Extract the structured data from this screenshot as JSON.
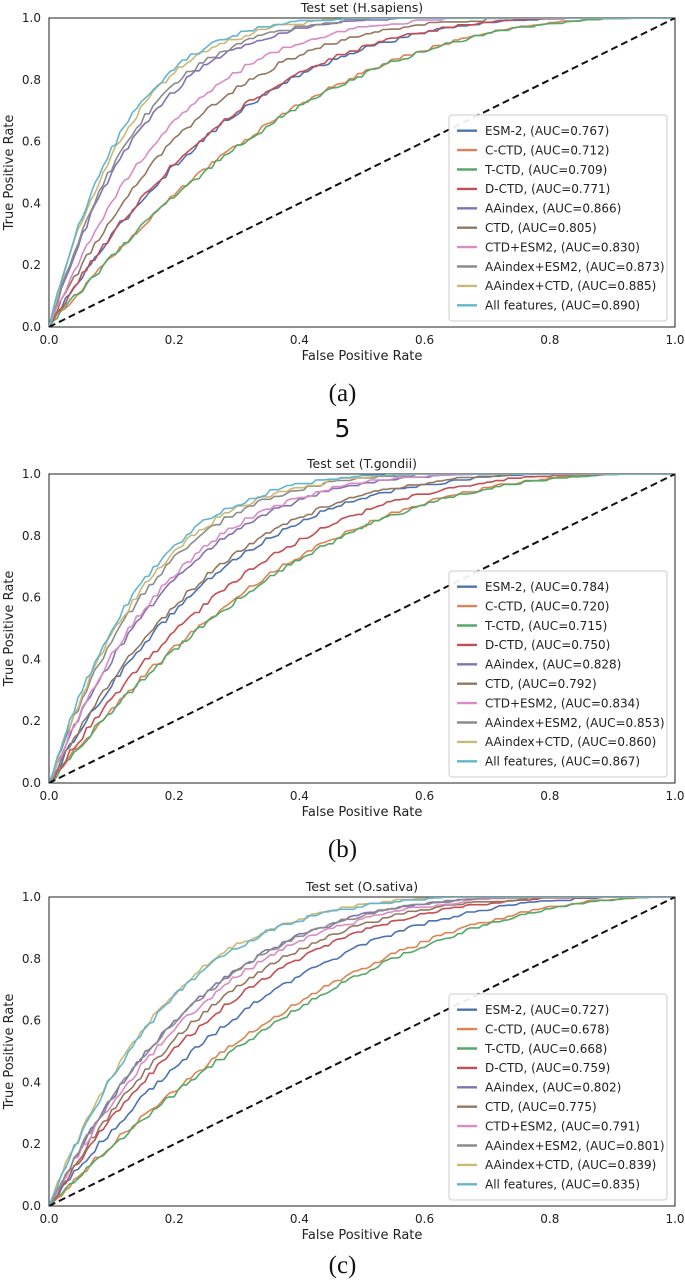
{
  "chart_data": [
    {
      "type": "line",
      "title": "Test set (H.sapiens)",
      "xlabel": "False Positive Rate",
      "ylabel": "True Positive Rate",
      "xlim": [
        0,
        1
      ],
      "ylim": [
        0,
        1
      ],
      "xticks": [
        "0.0",
        "0.2",
        "0.4",
        "0.6",
        "0.8",
        "1.0"
      ],
      "yticks": [
        "0.0",
        "0.2",
        "0.4",
        "0.6",
        "0.8",
        "1.0"
      ],
      "legend_position": "lower-right",
      "caption": "(a)",
      "series": [
        {
          "name": "ESM-2, (AUC=0.767)",
          "auc": 0.767,
          "color": "#4c72b0"
        },
        {
          "name": "C-CTD, (AUC=0.712)",
          "auc": 0.712,
          "color": "#dd8452"
        },
        {
          "name": "T-CTD, (AUC=0.709)",
          "auc": 0.709,
          "color": "#55a868"
        },
        {
          "name": "D-CTD, (AUC=0.771)",
          "auc": 0.771,
          "color": "#c44e52"
        },
        {
          "name": "AAindex, (AUC=0.866)",
          "auc": 0.866,
          "color": "#8172b3"
        },
        {
          "name": "CTD, (AUC=0.805)",
          "auc": 0.805,
          "color": "#937860"
        },
        {
          "name": "CTD+ESM2, (AUC=0.830)",
          "auc": 0.83,
          "color": "#da8bc3"
        },
        {
          "name": "AAindex+ESM2, (AUC=0.873)",
          "auc": 0.873,
          "color": "#8c8c8c"
        },
        {
          "name": "AAindex+CTD, (AUC=0.885)",
          "auc": 0.885,
          "color": "#ccb974"
        },
        {
          "name": "All features, (AUC=0.890)",
          "auc": 0.89,
          "color": "#64b5cd"
        }
      ]
    },
    {
      "type": "line",
      "title": "Test set (T.gondii)",
      "xlabel": "False Positive Rate",
      "ylabel": "True Positive Rate",
      "xlim": [
        0,
        1
      ],
      "ylim": [
        0,
        1
      ],
      "xticks": [
        "0.0",
        "0.2",
        "0.4",
        "0.6",
        "0.8",
        "1.0"
      ],
      "yticks": [
        "0.0",
        "0.2",
        "0.4",
        "0.6",
        "0.8",
        "1.0"
      ],
      "legend_position": "lower-right",
      "caption": "(b)",
      "series": [
        {
          "name": "ESM-2, (AUC=0.784)",
          "auc": 0.784,
          "color": "#4c72b0"
        },
        {
          "name": "C-CTD, (AUC=0.720)",
          "auc": 0.72,
          "color": "#dd8452"
        },
        {
          "name": "T-CTD, (AUC=0.715)",
          "auc": 0.715,
          "color": "#55a868"
        },
        {
          "name": "D-CTD, (AUC=0.750)",
          "auc": 0.75,
          "color": "#c44e52"
        },
        {
          "name": "AAindex, (AUC=0.828)",
          "auc": 0.828,
          "color": "#8172b3"
        },
        {
          "name": "CTD, (AUC=0.792)",
          "auc": 0.792,
          "color": "#937860"
        },
        {
          "name": "CTD+ESM2, (AUC=0.834)",
          "auc": 0.834,
          "color": "#da8bc3"
        },
        {
          "name": "AAindex+ESM2, (AUC=0.853)",
          "auc": 0.853,
          "color": "#8c8c8c"
        },
        {
          "name": "AAindex+CTD, (AUC=0.860)",
          "auc": 0.86,
          "color": "#ccb974"
        },
        {
          "name": "All features, (AUC=0.867)",
          "auc": 0.867,
          "color": "#64b5cd"
        }
      ]
    },
    {
      "type": "line",
      "title": "Test set (O.sativa)",
      "xlabel": "False Positive Rate",
      "ylabel": "True Positive Rate",
      "xlim": [
        0,
        1
      ],
      "ylim": [
        0,
        1
      ],
      "xticks": [
        "0.0",
        "0.2",
        "0.4",
        "0.6",
        "0.8",
        "1.0"
      ],
      "yticks": [
        "0.0",
        "0.2",
        "0.4",
        "0.6",
        "0.8",
        "1.0"
      ],
      "legend_position": "lower-right",
      "caption": "(c)",
      "series": [
        {
          "name": "ESM-2, (AUC=0.727)",
          "auc": 0.727,
          "color": "#4c72b0"
        },
        {
          "name": "C-CTD, (AUC=0.678)",
          "auc": 0.678,
          "color": "#dd8452"
        },
        {
          "name": "T-CTD, (AUC=0.668)",
          "auc": 0.668,
          "color": "#55a868"
        },
        {
          "name": "D-CTD, (AUC=0.759)",
          "auc": 0.759,
          "color": "#c44e52"
        },
        {
          "name": "AAindex, (AUC=0.802)",
          "auc": 0.802,
          "color": "#8172b3"
        },
        {
          "name": "CTD, (AUC=0.775)",
          "auc": 0.775,
          "color": "#937860"
        },
        {
          "name": "CTD+ESM2, (AUC=0.791)",
          "auc": 0.791,
          "color": "#da8bc3"
        },
        {
          "name": "AAindex+ESM2, (AUC=0.801)",
          "auc": 0.801,
          "color": "#8c8c8c"
        },
        {
          "name": "AAindex+CTD, (AUC=0.839)",
          "auc": 0.839,
          "color": "#ccb974"
        },
        {
          "name": "All features, (AUC=0.835)",
          "auc": 0.835,
          "color": "#64b5cd"
        }
      ]
    }
  ],
  "page_number": "5"
}
